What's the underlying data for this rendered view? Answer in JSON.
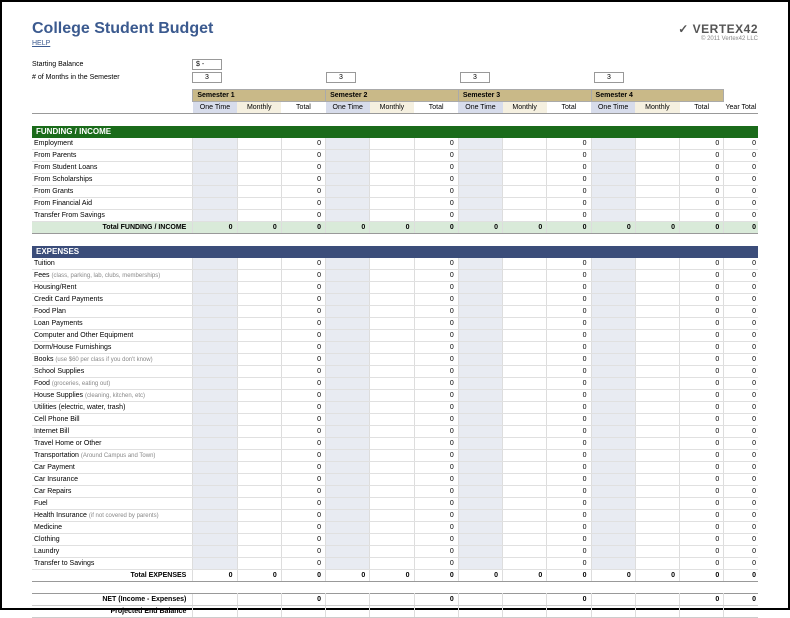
{
  "title": "College Student Budget",
  "help": "HELP",
  "logo": "VERTEX42",
  "copyright": "© 2011 Vertex42 LLC",
  "starting_balance_label": "Starting Balance",
  "starting_balance_value": "$    -",
  "months_label": "# of Months in the Semester",
  "months_value": "3",
  "semesters": [
    "Semester 1",
    "Semester 2",
    "Semester 3",
    "Semester 4"
  ],
  "subheaders": [
    "One Time",
    "Monthly",
    "Total"
  ],
  "year_total_label": "Year Total",
  "funding": {
    "header": "FUNDING / INCOME",
    "rows": [
      "Employment",
      "From Parents",
      "From Student Loans",
      "From Scholarships",
      "From Grants",
      "From Financial Aid",
      "Transfer From Savings"
    ],
    "total_label": "Total FUNDING / INCOME"
  },
  "expenses": {
    "header": "EXPENSES",
    "rows": [
      {
        "label": "Tuition"
      },
      {
        "label": "Fees",
        "sub": "(class, parking, lab, clubs, memberships)"
      },
      {
        "label": "Housing/Rent"
      },
      {
        "label": "Credit Card Payments"
      },
      {
        "label": "Food Plan"
      },
      {
        "label": "Loan Payments"
      },
      {
        "label": "Computer and Other Equipment"
      },
      {
        "label": "Dorm/House Furnishings"
      },
      {
        "label": "Books",
        "sub": "(use $60 per class if you don't know)"
      },
      {
        "label": "School Supplies"
      },
      {
        "label": "Food",
        "sub": "(groceries, eating out)"
      },
      {
        "label": "House Supplies",
        "sub": "(cleaning, kitchen, etc)"
      },
      {
        "label": "Utilities (electric, water, trash)"
      },
      {
        "label": "Cell Phone Bill"
      },
      {
        "label": "Internet Bill"
      },
      {
        "label": "Travel Home or Other"
      },
      {
        "label": "Transportation",
        "sub": "(Around Campus and Town)"
      },
      {
        "label": "Car Payment"
      },
      {
        "label": "Car Insurance"
      },
      {
        "label": "Car Repairs"
      },
      {
        "label": "Fuel"
      },
      {
        "label": "Health Insurance",
        "sub": "(if not covered by parents)"
      },
      {
        "label": "Medicine"
      },
      {
        "label": "Clothing"
      },
      {
        "label": "Laundry"
      },
      {
        "label": "Transfer to Savings"
      }
    ],
    "total_label": "Total EXPENSES"
  },
  "net_label": "NET (Income - Expenses)",
  "projected_label": "Projected End Balance",
  "zero": "0",
  "colors": {
    "funding_header": "#1a6b1a",
    "expenses_header": "#3b4d7a",
    "sem_header": "#c9b988",
    "onetime_bg": "#e8ebf2",
    "funding_total_bg": "#d9ead9",
    "title_color": "#3b5a8f"
  }
}
